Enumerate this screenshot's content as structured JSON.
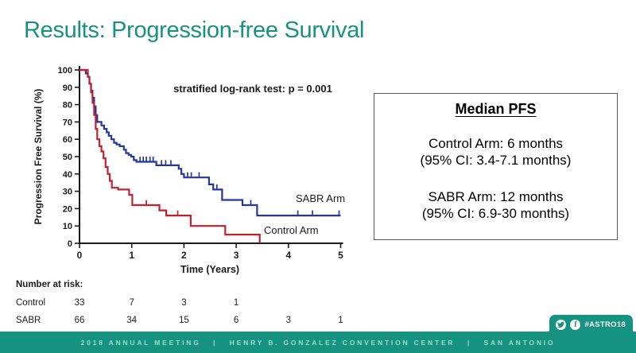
{
  "slide": {
    "title": "Results: Progression-free Survival",
    "accent_color": "#169380"
  },
  "chart_data": {
    "type": "line",
    "subtype": "kaplan-meier-step",
    "xlabel": "Time (Years)",
    "ylabel": "Progression Free Survival (%)",
    "annotation": "stratified log-rank test: p = 0.001",
    "xlim": [
      0,
      5
    ],
    "ylim": [
      0,
      100
    ],
    "x_ticks": [
      0,
      1,
      2,
      3,
      4,
      5
    ],
    "y_ticks": [
      0,
      10,
      20,
      30,
      40,
      50,
      60,
      70,
      80,
      90,
      100
    ],
    "grid": false,
    "legend_position": "on-curve-labels",
    "axis_color": "#1a1a1a",
    "series": [
      {
        "name": "SABR Arm",
        "color": "#23369e",
        "steps": [
          [
            0,
            100
          ],
          [
            0.12,
            98
          ],
          [
            0.16,
            96
          ],
          [
            0.19,
            92
          ],
          [
            0.22,
            88
          ],
          [
            0.25,
            84
          ],
          [
            0.28,
            79
          ],
          [
            0.31,
            74
          ],
          [
            0.34,
            70
          ],
          [
            0.42,
            68
          ],
          [
            0.47,
            66
          ],
          [
            0.52,
            64
          ],
          [
            0.56,
            62
          ],
          [
            0.61,
            60
          ],
          [
            0.66,
            58
          ],
          [
            0.71,
            57
          ],
          [
            0.77,
            56
          ],
          [
            0.85,
            54
          ],
          [
            0.89,
            52
          ],
          [
            0.94,
            51
          ],
          [
            0.99,
            50
          ],
          [
            1.04,
            48
          ],
          [
            1.09,
            47
          ],
          [
            1.47,
            45
          ],
          [
            1.9,
            43
          ],
          [
            1.95,
            40
          ],
          [
            2.0,
            38
          ],
          [
            2.48,
            34
          ],
          [
            2.56,
            31
          ],
          [
            2.73,
            25
          ],
          [
            3.12,
            22
          ],
          [
            3.4,
            16
          ],
          [
            5.0,
            16
          ]
        ],
        "censors": [
          [
            1.16,
            47
          ],
          [
            1.22,
            47
          ],
          [
            1.28,
            47
          ],
          [
            1.35,
            47
          ],
          [
            1.41,
            47
          ],
          [
            1.57,
            45
          ],
          [
            1.65,
            45
          ],
          [
            1.75,
            45
          ],
          [
            2.07,
            38
          ],
          [
            2.14,
            38
          ],
          [
            2.29,
            38
          ],
          [
            2.63,
            31
          ],
          [
            3.28,
            22
          ],
          [
            4.18,
            16
          ],
          [
            4.46,
            16
          ],
          [
            4.97,
            16
          ]
        ]
      },
      {
        "name": "Control Arm",
        "color": "#c1212e",
        "steps": [
          [
            0,
            100
          ],
          [
            0.16,
            96
          ],
          [
            0.19,
            92
          ],
          [
            0.22,
            87
          ],
          [
            0.25,
            81
          ],
          [
            0.28,
            74
          ],
          [
            0.31,
            66
          ],
          [
            0.34,
            60
          ],
          [
            0.38,
            56
          ],
          [
            0.42,
            53
          ],
          [
            0.46,
            49
          ],
          [
            0.5,
            44
          ],
          [
            0.54,
            40
          ],
          [
            0.58,
            36
          ],
          [
            0.62,
            32
          ],
          [
            0.74,
            31
          ],
          [
            0.95,
            28
          ],
          [
            1.01,
            22
          ],
          [
            1.53,
            19
          ],
          [
            1.66,
            16
          ],
          [
            2.13,
            10
          ],
          [
            2.79,
            5
          ],
          [
            3.45,
            0
          ]
        ],
        "censors": [
          [
            1.28,
            22
          ],
          [
            1.88,
            16
          ]
        ]
      }
    ],
    "number_at_risk": {
      "label": "Number at risk:",
      "times": [
        0,
        1,
        2,
        3,
        4,
        5
      ],
      "rows": [
        {
          "name": "Control",
          "counts": [
            "33",
            "7",
            "3",
            "1",
            "",
            ""
          ]
        },
        {
          "name": "SABR",
          "counts": [
            "66",
            "34",
            "15",
            "6",
            "3",
            "1"
          ]
        }
      ]
    }
  },
  "median_box": {
    "title": "Median PFS",
    "control_line1": "Control Arm: 6 months",
    "control_line2": "(95% CI: 3.4-7.1 months)",
    "sabr_line1": "SABR Arm: 12 months",
    "sabr_line2": "(95% CI: 6.9-30 months)"
  },
  "footer": {
    "text": "2018 ANNUAL MEETING   |   HENRY B. GONZALEZ CONVENTION CENTER   |   SAN ANTONIO",
    "hashtag": "#ASTRO18",
    "icons": [
      "twitter-icon",
      "facebook-icon"
    ]
  }
}
